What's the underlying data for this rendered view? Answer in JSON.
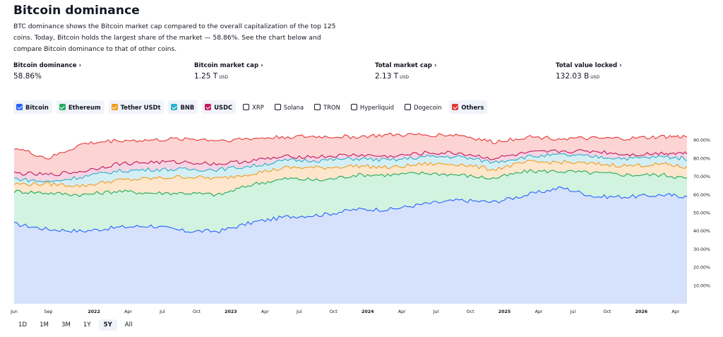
{
  "page": {
    "title": "Bitcoin dominance",
    "description": "BTC dominance shows the Bitcoin market cap compared to the overall capitalization of the top 125 coins. Today, Bitcoin holds the largest share of the market — 58.86%. See the chart below and compare Bitcoin dominance to that of other coins."
  },
  "stats": [
    {
      "label": "Bitcoin dominance",
      "value": "58.86%",
      "unit": ""
    },
    {
      "label": "Bitcoin market cap",
      "value": "1.25 T",
      "unit": "USD"
    },
    {
      "label": "Total market cap",
      "value": "2.13 T",
      "unit": "USD"
    },
    {
      "label": "Total value locked",
      "value": "132.03 B",
      "unit": "USD"
    }
  ],
  "legend": [
    {
      "name": "Bitcoin",
      "checked": true,
      "color": "#2962ff"
    },
    {
      "name": "Ethereum",
      "checked": true,
      "color": "#22ab5c"
    },
    {
      "name": "Tether USDt",
      "checked": true,
      "color": "#f29a1f"
    },
    {
      "name": "BNB",
      "checked": true,
      "color": "#28b0c8"
    },
    {
      "name": "USDC",
      "checked": true,
      "color": "#c2185b"
    },
    {
      "name": "XRP",
      "checked": false,
      "color": "#131722"
    },
    {
      "name": "Solana",
      "checked": false,
      "color": "#131722"
    },
    {
      "name": "TRON",
      "checked": false,
      "color": "#131722"
    },
    {
      "name": "Hyperliquid",
      "checked": false,
      "color": "#131722"
    },
    {
      "name": "Dogecoin",
      "checked": false,
      "color": "#131722"
    },
    {
      "name": "Others",
      "checked": true,
      "color": "#e53935"
    }
  ],
  "ranges": [
    "1D",
    "1M",
    "3M",
    "1Y",
    "5Y",
    "All"
  ],
  "selected_range": "5Y",
  "chart_data": {
    "type": "area",
    "stacked": true,
    "x": [
      "2021-06",
      "2021-09",
      "2021-12",
      "2022-03",
      "2022-06",
      "2022-09",
      "2022-12",
      "2023-03",
      "2023-06",
      "2023-09",
      "2023-12",
      "2024-03",
      "2024-06",
      "2024-09",
      "2024-12",
      "2025-03",
      "2025-06",
      "2025-09",
      "2025-12",
      "2026-03",
      "2026-05"
    ],
    "x_tick_labels": [
      "Jun",
      "Sep",
      "2022",
      "Apr",
      "Jul",
      "Oct",
      "2023",
      "Apr",
      "Jul",
      "Oct",
      "2024",
      "Apr",
      "Jul",
      "Oct",
      "2025",
      "Apr",
      "Jul",
      "Oct",
      "2026",
      "Apr"
    ],
    "y_tick_labels": [
      "10.00%",
      "20.00%",
      "30.00%",
      "40.00%",
      "50.00%",
      "60.00%",
      "70.00%",
      "80.00%",
      "90.00%"
    ],
    "ylim": [
      0,
      100
    ],
    "series": [
      {
        "name": "Bitcoin",
        "color": "#2962ff",
        "fill": "#d6e1fb",
        "values": [
          44,
          41,
          40,
          42,
          43,
          40,
          40,
          45,
          48,
          49,
          52,
          52,
          55,
          57,
          56,
          60,
          64,
          59,
          59,
          60,
          59
        ]
      },
      {
        "name": "Ethereum",
        "color": "#22ab5c",
        "fill": "#d2f3e0",
        "values": [
          62,
          61,
          60,
          62,
          61,
          61,
          60,
          66,
          69,
          68,
          71,
          71,
          72,
          71,
          69,
          73,
          73,
          72,
          71,
          71,
          69
        ]
      },
      {
        "name": "Tether USDt",
        "color": "#f29a1f",
        "fill": "#fde6cc",
        "values": [
          66,
          66,
          65,
          68,
          69,
          70,
          69,
          72,
          75,
          75,
          76,
          75,
          77,
          77,
          74,
          78,
          78,
          77,
          76,
          77,
          75
        ]
      },
      {
        "name": "BNB",
        "color": "#28b0c8",
        "fill": "#d4eff4",
        "values": [
          69,
          67,
          70,
          73,
          74,
          74,
          74,
          76,
          79,
          79,
          80,
          79,
          81,
          81,
          78,
          81,
          82,
          81,
          80,
          81,
          80
        ]
      },
      {
        "name": "USDC",
        "color": "#c2185b",
        "fill": "#f5d5e3",
        "values": [
          72,
          71,
          73,
          77,
          78,
          78,
          77,
          79,
          81,
          81,
          82,
          81,
          83,
          83,
          80,
          83,
          84,
          84,
          82,
          83,
          83
        ]
      },
      {
        "name": "Others",
        "color": "#e53935",
        "fill": "#fcd4d4",
        "values": [
          86,
          80,
          88,
          90,
          90,
          91,
          90,
          91,
          92,
          92,
          92,
          93,
          93,
          93,
          89,
          92,
          91,
          91,
          91,
          92,
          92
        ]
      }
    ]
  }
}
